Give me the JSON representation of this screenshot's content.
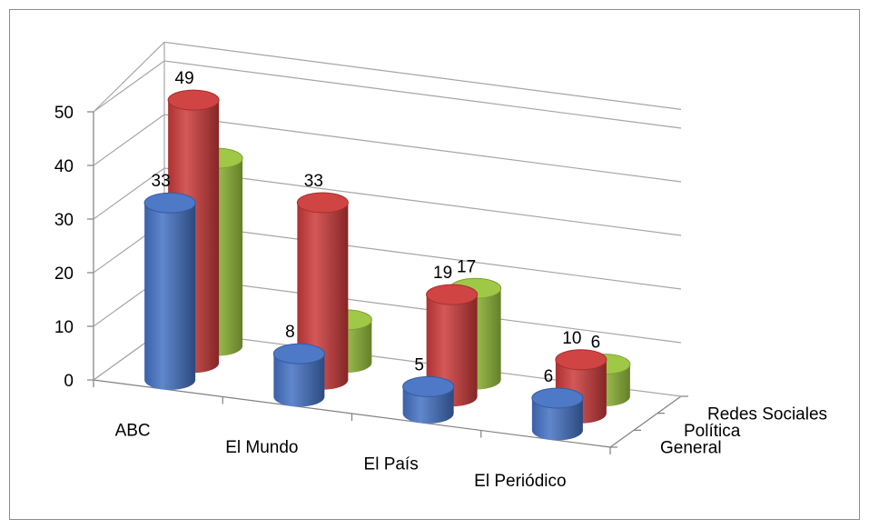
{
  "chart_data": {
    "type": "bar",
    "style": "3d-cylinder",
    "categories": [
      "ABC",
      "El Mundo",
      "El País",
      "El Periódico"
    ],
    "series": [
      {
        "name": "General",
        "color": "#4472c4",
        "values": [
          33,
          8,
          5,
          6
        ]
      },
      {
        "name": "Política",
        "color": "#cd3a3a",
        "values": [
          49,
          33,
          19,
          10
        ]
      },
      {
        "name": "Redes Sociales",
        "color": "#9bc53d",
        "values": [
          35,
          8,
          17,
          6
        ]
      }
    ],
    "ylim": [
      0,
      50
    ],
    "yticks": [
      0,
      10,
      20,
      30,
      40,
      50
    ],
    "grid": true,
    "legend": "none",
    "title": "",
    "xlabel": "",
    "ylabel": ""
  }
}
